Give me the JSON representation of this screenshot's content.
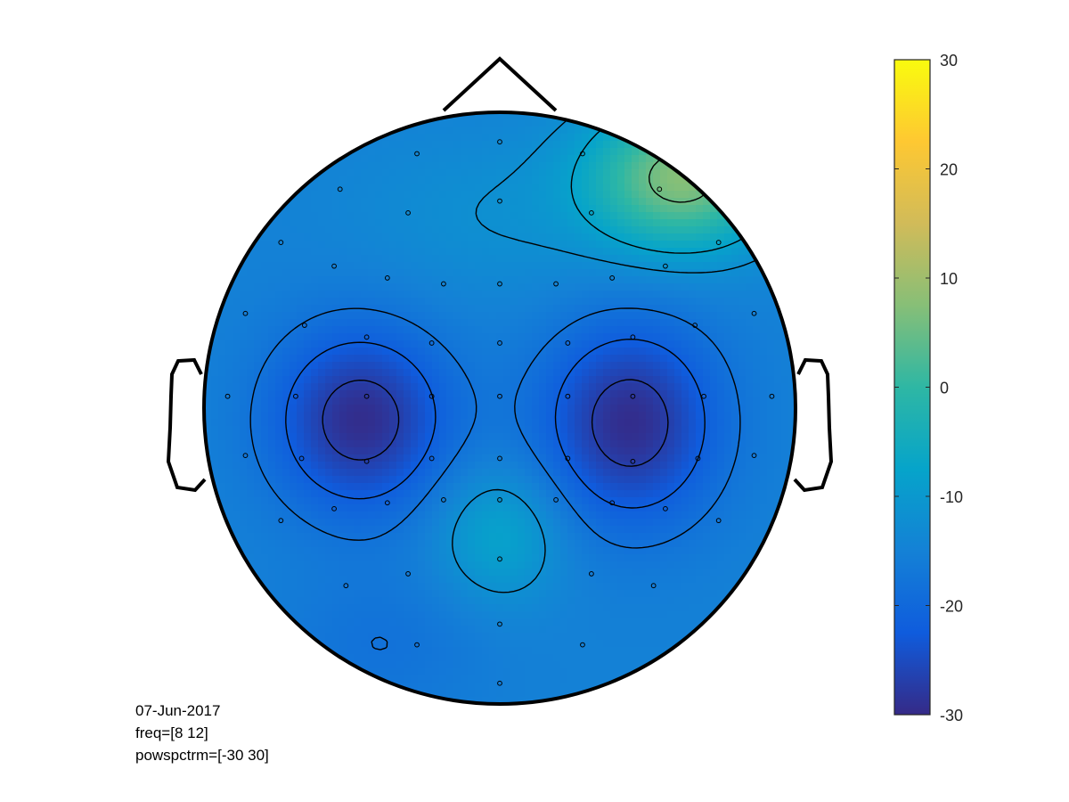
{
  "info": {
    "date": "07-Jun-2017",
    "freq": "freq=[8 12]",
    "param": "powspctrm=[-30 30]"
  },
  "chart_data": {
    "type": "heatmap",
    "title": "",
    "xlabel": "",
    "ylabel": "",
    "clim": [
      -30,
      30
    ],
    "colormap": "parula",
    "colorbar_ticks": [
      30,
      20,
      10,
      0,
      -10,
      -20,
      -30
    ],
    "contour_levels": [
      -27,
      -22,
      -18,
      -12,
      -8,
      5
    ],
    "blobs": [
      {
        "label": "left-minimum",
        "x": -0.47,
        "y": -0.04,
        "value": -29
      },
      {
        "label": "right-minimum",
        "x": 0.44,
        "y": -0.05,
        "value": -29
      },
      {
        "label": "occipital-central-peak",
        "x": 0.0,
        "y": -0.42,
        "value": -8
      },
      {
        "label": "right-frontal-peak",
        "x": 0.6,
        "y": 0.72,
        "value": 6
      }
    ],
    "channels": [
      [
        0.0,
        0.9
      ],
      [
        -0.28,
        0.86
      ],
      [
        0.28,
        0.86
      ],
      [
        -0.54,
        0.74
      ],
      [
        0.54,
        0.74
      ],
      [
        0.0,
        0.7
      ],
      [
        -0.31,
        0.66
      ],
      [
        0.31,
        0.66
      ],
      [
        -0.74,
        0.56
      ],
      [
        -0.56,
        0.48
      ],
      [
        -0.38,
        0.44
      ],
      [
        -0.19,
        0.42
      ],
      [
        0.0,
        0.42
      ],
      [
        0.19,
        0.42
      ],
      [
        0.38,
        0.44
      ],
      [
        0.56,
        0.48
      ],
      [
        0.74,
        0.56
      ],
      [
        -0.86,
        0.32
      ],
      [
        -0.66,
        0.28
      ],
      [
        -0.45,
        0.24
      ],
      [
        -0.23,
        0.22
      ],
      [
        0.0,
        0.22
      ],
      [
        0.23,
        0.22
      ],
      [
        0.45,
        0.24
      ],
      [
        0.66,
        0.28
      ],
      [
        0.86,
        0.32
      ],
      [
        -0.92,
        0.04
      ],
      [
        -0.69,
        0.04
      ],
      [
        -0.45,
        0.04
      ],
      [
        -0.23,
        0.04
      ],
      [
        0.0,
        0.04
      ],
      [
        0.23,
        0.04
      ],
      [
        0.45,
        0.04
      ],
      [
        0.69,
        0.04
      ],
      [
        0.92,
        0.04
      ],
      [
        -0.86,
        -0.16
      ],
      [
        -0.67,
        -0.17
      ],
      [
        -0.45,
        -0.18
      ],
      [
        -0.23,
        -0.17
      ],
      [
        0.0,
        -0.17
      ],
      [
        0.23,
        -0.17
      ],
      [
        0.45,
        -0.18
      ],
      [
        0.67,
        -0.17
      ],
      [
        0.86,
        -0.16
      ],
      [
        -0.74,
        -0.38
      ],
      [
        -0.56,
        -0.34
      ],
      [
        -0.38,
        -0.32
      ],
      [
        -0.19,
        -0.31
      ],
      [
        0.0,
        -0.31
      ],
      [
        0.19,
        -0.31
      ],
      [
        0.38,
        -0.32
      ],
      [
        0.56,
        -0.34
      ],
      [
        0.74,
        -0.38
      ],
      [
        -0.52,
        -0.6
      ],
      [
        -0.31,
        -0.56
      ],
      [
        0.0,
        -0.51
      ],
      [
        0.31,
        -0.56
      ],
      [
        0.52,
        -0.6
      ],
      [
        -0.28,
        -0.8
      ],
      [
        0.0,
        -0.73
      ],
      [
        0.28,
        -0.8
      ],
      [
        0.0,
        -0.93
      ]
    ]
  }
}
